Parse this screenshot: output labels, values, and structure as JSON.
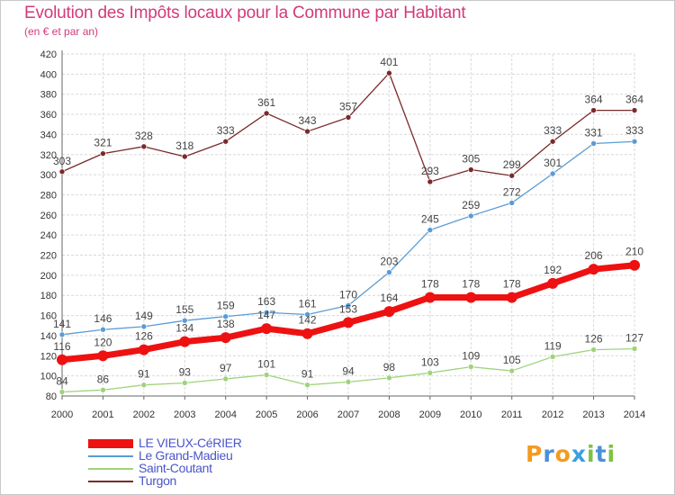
{
  "title": "Evolution des Impôts locaux pour la Commune par Habitant",
  "subtitle": "(en € et par an)",
  "logo": {
    "letters": [
      "P",
      "r",
      "o",
      "x",
      "i",
      "t",
      "i"
    ],
    "colors": [
      "#f39b1e",
      "#4a90d9",
      "#f39b1e",
      "#3aa0e0",
      "#7cc242",
      "#4a90d9",
      "#7cc242"
    ]
  },
  "chart_data": {
    "type": "line",
    "title": "Evolution des Impôts locaux pour la Commune par Habitant",
    "subtitle": "(en € et par an)",
    "x": [
      "2000",
      "2001",
      "2002",
      "2003",
      "2004",
      "2005",
      "2006",
      "2007",
      "2008",
      "2009",
      "2010",
      "2011",
      "2012",
      "2013",
      "2014"
    ],
    "ylim": [
      80,
      420
    ],
    "yticks": [
      80,
      100,
      120,
      140,
      160,
      180,
      200,
      220,
      240,
      260,
      280,
      300,
      320,
      340,
      360,
      380,
      400,
      420
    ],
    "grid": true,
    "legend": "bottom-left",
    "series": [
      {
        "name": "Turgon",
        "color": "#7a2a2a",
        "width": 1.3,
        "marker": 3,
        "values": [
          303,
          321,
          328,
          318,
          333,
          361,
          343,
          357,
          401,
          293,
          305,
          299,
          333,
          364,
          364
        ]
      },
      {
        "name": "Le Grand-Madieu",
        "color": "#5b9bd5",
        "width": 1.3,
        "marker": 3,
        "values": [
          141,
          146,
          149,
          155,
          159,
          163,
          161,
          170,
          203,
          245,
          259,
          272,
          301,
          331,
          333
        ]
      },
      {
        "name": "Saint-Coutant",
        "color": "#9fd37b",
        "width": 1.3,
        "marker": 3,
        "values": [
          84,
          86,
          91,
          93,
          97,
          101,
          91,
          94,
          98,
          103,
          109,
          105,
          119,
          126,
          127
        ]
      },
      {
        "name": "LE VIEUX-CéRIER",
        "color": "#ee1111",
        "width": 7,
        "marker": 6,
        "values": [
          116,
          120,
          126,
          134,
          138,
          147,
          142,
          153,
          164,
          178,
          178,
          178,
          192,
          206,
          210
        ]
      }
    ],
    "legend_order": [
      "LE VIEUX-CéRIER",
      "Le Grand-Madieu",
      "Saint-Coutant",
      "Turgon"
    ]
  }
}
